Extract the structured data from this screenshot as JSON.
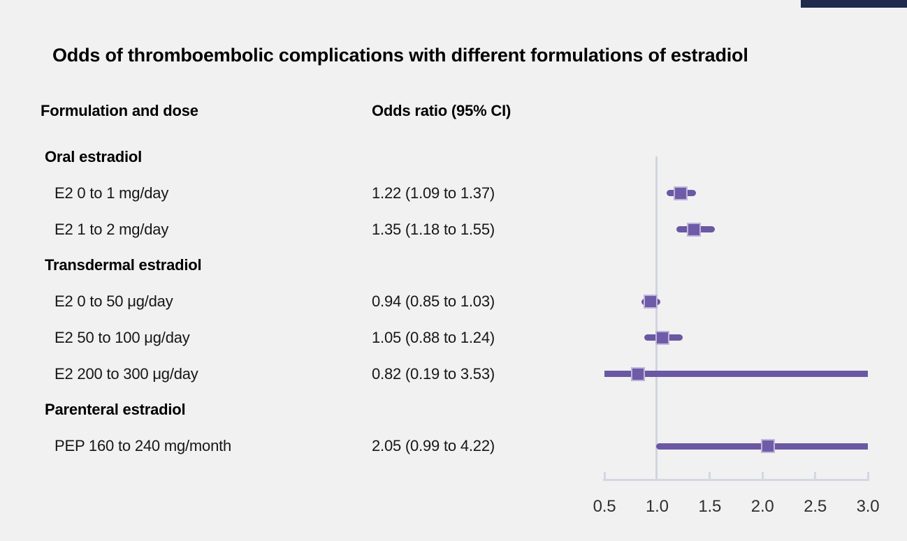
{
  "title": "Odds of thromboembolic complications with different formulations of estradiol",
  "columns": {
    "formulation": "Formulation and dose",
    "odds": "Odds ratio (95% CI)"
  },
  "colors": {
    "background": "#f1f1f2",
    "ci_line_purple": "#6a58a3",
    "point_square_purple": "#6e5ca9",
    "point_square_border": "#bfb5da",
    "axis_gray": "#d3d8e1",
    "text_black": "#161616",
    "corner_bar_navy": "#20294e"
  },
  "chart_data": {
    "type": "forest",
    "title": "Odds of thromboembolic complications with different formulations of estradiol",
    "xlabel": "",
    "ylabel": "",
    "x_axis": {
      "min": 0.5,
      "max": 3.0,
      "ticks": [
        "0.5",
        "1.0",
        "1.5",
        "2.0",
        "2.5",
        "3.0"
      ],
      "reference_line": 1.0,
      "grid": false
    },
    "groups": [
      {
        "label": "Oral estradiol",
        "items": [
          {
            "label": "E2 0 to 1 mg/day",
            "or": 1.22,
            "ci_low": 1.09,
            "ci_high": 1.37,
            "display": "1.22 (1.09 to 1.37)"
          },
          {
            "label": "E2 1 to 2 mg/day",
            "or": 1.35,
            "ci_low": 1.18,
            "ci_high": 1.55,
            "display": "1.35 (1.18 to 1.55)"
          }
        ]
      },
      {
        "label": "Transdermal estradiol",
        "items": [
          {
            "label": "E2 0 to 50 μg/day",
            "or": 0.94,
            "ci_low": 0.85,
            "ci_high": 1.03,
            "display": "0.94 (0.85 to 1.03)"
          },
          {
            "label": "E2 50 to 100 μg/day",
            "or": 1.05,
            "ci_low": 0.88,
            "ci_high": 1.24,
            "display": "1.05 (0.88 to 1.24)"
          },
          {
            "label": "E2 200 to 300 μg/day",
            "or": 0.82,
            "ci_low": 0.19,
            "ci_high": 3.53,
            "display": "0.82 (0.19 to 3.53)"
          }
        ]
      },
      {
        "label": "Parenteral estradiol",
        "items": [
          {
            "label": "PEP 160 to 240 mg/month",
            "or": 2.05,
            "ci_low": 0.99,
            "ci_high": 4.22,
            "display": "2.05 (0.99 to 4.22)"
          }
        ]
      }
    ]
  }
}
